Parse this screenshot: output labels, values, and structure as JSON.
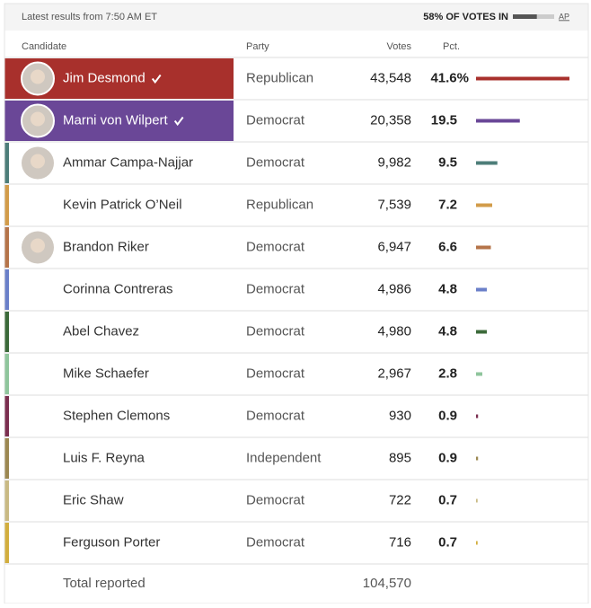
{
  "header": {
    "latest": "Latest results from 7:50 AM ET",
    "votes_in": {
      "value": 58,
      "label": "58% OF VOTES IN"
    },
    "source": "AP"
  },
  "table": {
    "columns": [
      "Candidate",
      "Party",
      "Votes",
      "Pct."
    ],
    "rows": [
      {
        "name": "Jim Desmond",
        "party": "Republican",
        "votes": "43,548",
        "pct": {
          "value": 41.6,
          "label": "41.6%"
        },
        "color": "#a8302c",
        "winner": true,
        "photo": true
      },
      {
        "name": "Marni von Wilpert",
        "party": "Democrat",
        "votes": "20,358",
        "pct": 19.5,
        "color": "#6a4797",
        "winner": true,
        "photo": true
      },
      {
        "name": "Ammar Campa-Najjar",
        "party": "Democrat",
        "votes": "9,982",
        "pct": 9.5,
        "color": "#4d7d79",
        "photo": true
      },
      {
        "name": "Kevin Patrick O’Neil",
        "party": "Republican",
        "votes": "7,539",
        "pct": 7.2,
        "color": "#d29c4a"
      },
      {
        "name": "Brandon Riker",
        "party": "Democrat",
        "votes": "6,947",
        "pct": 6.6,
        "color": "#b5744a",
        "photo": true
      },
      {
        "name": "Corinna Contreras",
        "party": "Democrat",
        "votes": "4,986",
        "pct": 4.8,
        "color": "#6b80c9"
      },
      {
        "name": "Abel Chavez",
        "party": "Democrat",
        "votes": "4,980",
        "pct": 4.8,
        "color": "#3c6a3a"
      },
      {
        "name": "Mike Schaefer",
        "party": "Democrat",
        "votes": "2,967",
        "pct": 2.8,
        "color": "#8fc59c"
      },
      {
        "name": "Stephen Clemons",
        "party": "Democrat",
        "votes": "930",
        "pct": 0.9,
        "color": "#7b2f50"
      },
      {
        "name": "Luis F. Reyna",
        "party": "Independent",
        "votes": "895",
        "pct": 0.9,
        "color": "#9c8852"
      },
      {
        "name": "Eric Shaw",
        "party": "Democrat",
        "votes": "722",
        "pct": 0.7,
        "color": "#c9ba84"
      },
      {
        "name": "Ferguson Porter",
        "party": "Democrat",
        "votes": "716",
        "pct": 0.7,
        "color": "#d2ae3e"
      }
    ],
    "total": {
      "label": "Total reported",
      "votes": "104,570"
    }
  }
}
